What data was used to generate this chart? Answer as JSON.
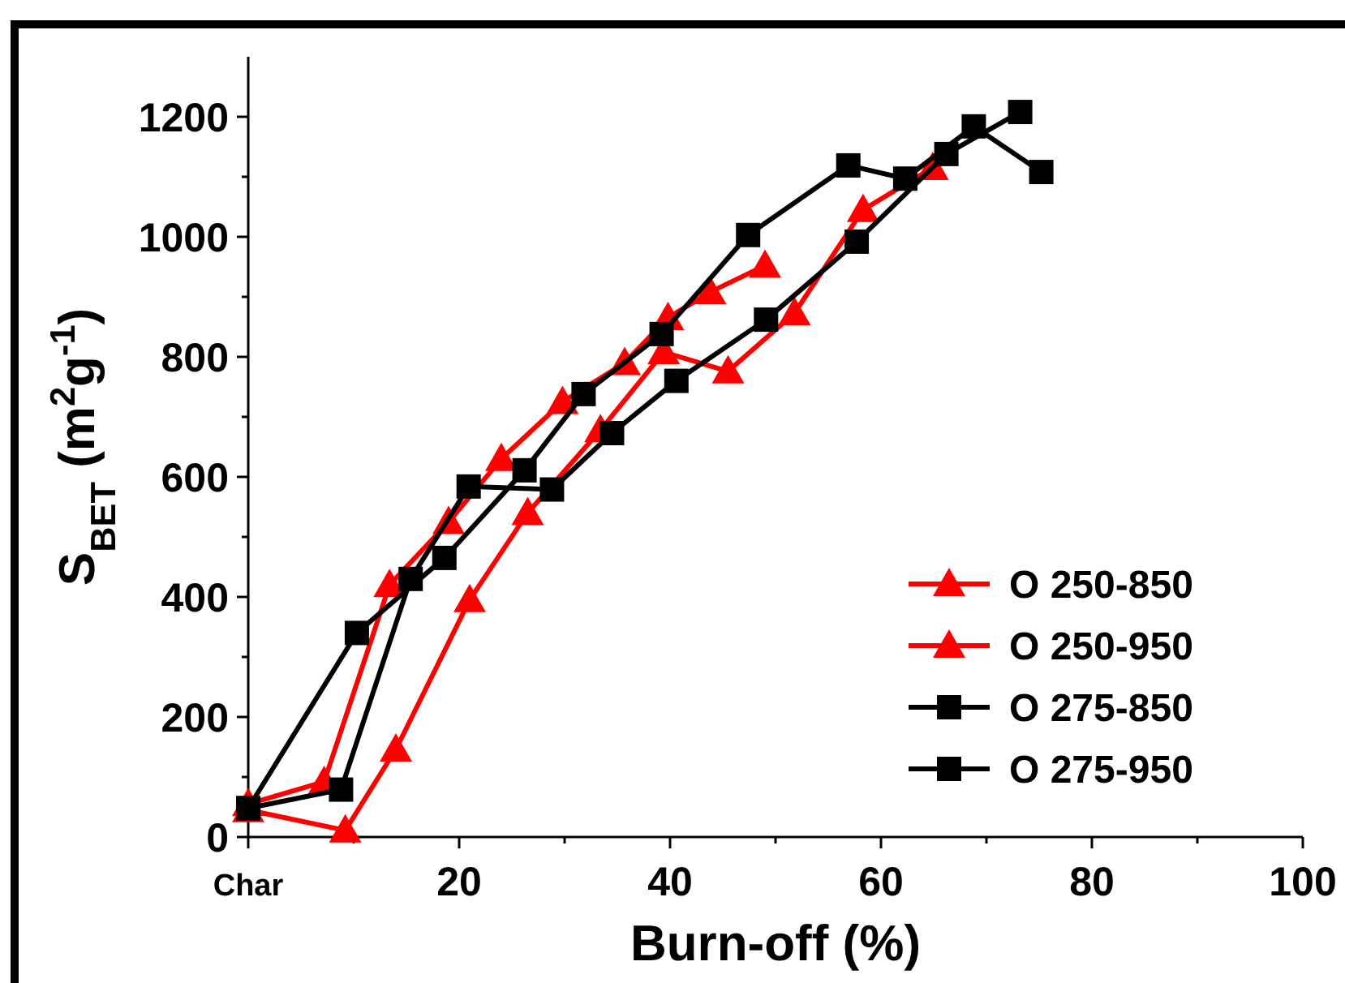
{
  "chart_data": {
    "type": "line",
    "xlabel": "Burn-off (%)",
    "ylabel": "S$_{BET}$ (m$^{2}$g$^{-1}$)",
    "xlim": [
      0,
      100
    ],
    "ylim": [
      0,
      1300
    ],
    "xticks": [
      {
        "value": 0,
        "label": "Char"
      },
      {
        "value": 10,
        "label": null
      },
      20,
      {
        "value": 30,
        "label": null
      },
      40,
      {
        "value": 50,
        "label": null
      },
      60,
      {
        "value": 70,
        "label": null
      },
      80,
      {
        "value": 90,
        "label": null
      },
      100
    ],
    "yticks": [
      0,
      {
        "value": 100,
        "label": null
      },
      200,
      {
        "value": 300,
        "label": null
      },
      400,
      {
        "value": 500,
        "label": null
      },
      600,
      {
        "value": 700,
        "label": null
      },
      800,
      {
        "value": 900,
        "label": null
      },
      1000,
      {
        "value": 1100,
        "label": null
      },
      1200
    ],
    "grid": false,
    "legend": "bottom right",
    "line_style": "solid",
    "series": [
      {
        "name": "O 250-850",
        "color": "#ff0000",
        "marker": "triangle",
        "x": [
          0,
          7.2,
          13.4,
          19,
          24,
          29.8,
          35.7,
          39.8,
          43.8,
          49
        ],
        "values": [
          55,
          92,
          420,
          525,
          630,
          725,
          790,
          865,
          908,
          952
        ]
      },
      {
        "name": "O 250-950",
        "color": "#ff0000",
        "marker": "triangle",
        "x": [
          0,
          9.2,
          14,
          21,
          26.5,
          33.4,
          39.4,
          45.5,
          51.8,
          58.3,
          64.9
        ],
        "values": [
          45,
          11,
          146,
          395,
          540,
          678,
          808,
          776,
          873,
          1045,
          1115
        ]
      },
      {
        "name": "O 275-850",
        "color": "#000000",
        "marker": "square",
        "x": [
          0,
          10.3,
          18.6,
          26.2,
          31.8,
          39.2,
          47.4,
          56.9,
          62.3,
          68.8,
          75.2
        ],
        "values": [
          48,
          340,
          465,
          611,
          738,
          838,
          1003,
          1119,
          1097,
          1184,
          1108
        ]
      },
      {
        "name": "O 275-950",
        "color": "#000000",
        "marker": "square",
        "x": [
          0,
          8.8,
          15.4,
          20.9,
          28.8,
          34.5,
          40.6,
          49.1,
          57.7,
          66.2,
          73.2
        ],
        "values": [
          48,
          79,
          430,
          584,
          579,
          673,
          760,
          862,
          992,
          1138,
          1208
        ]
      }
    ]
  }
}
